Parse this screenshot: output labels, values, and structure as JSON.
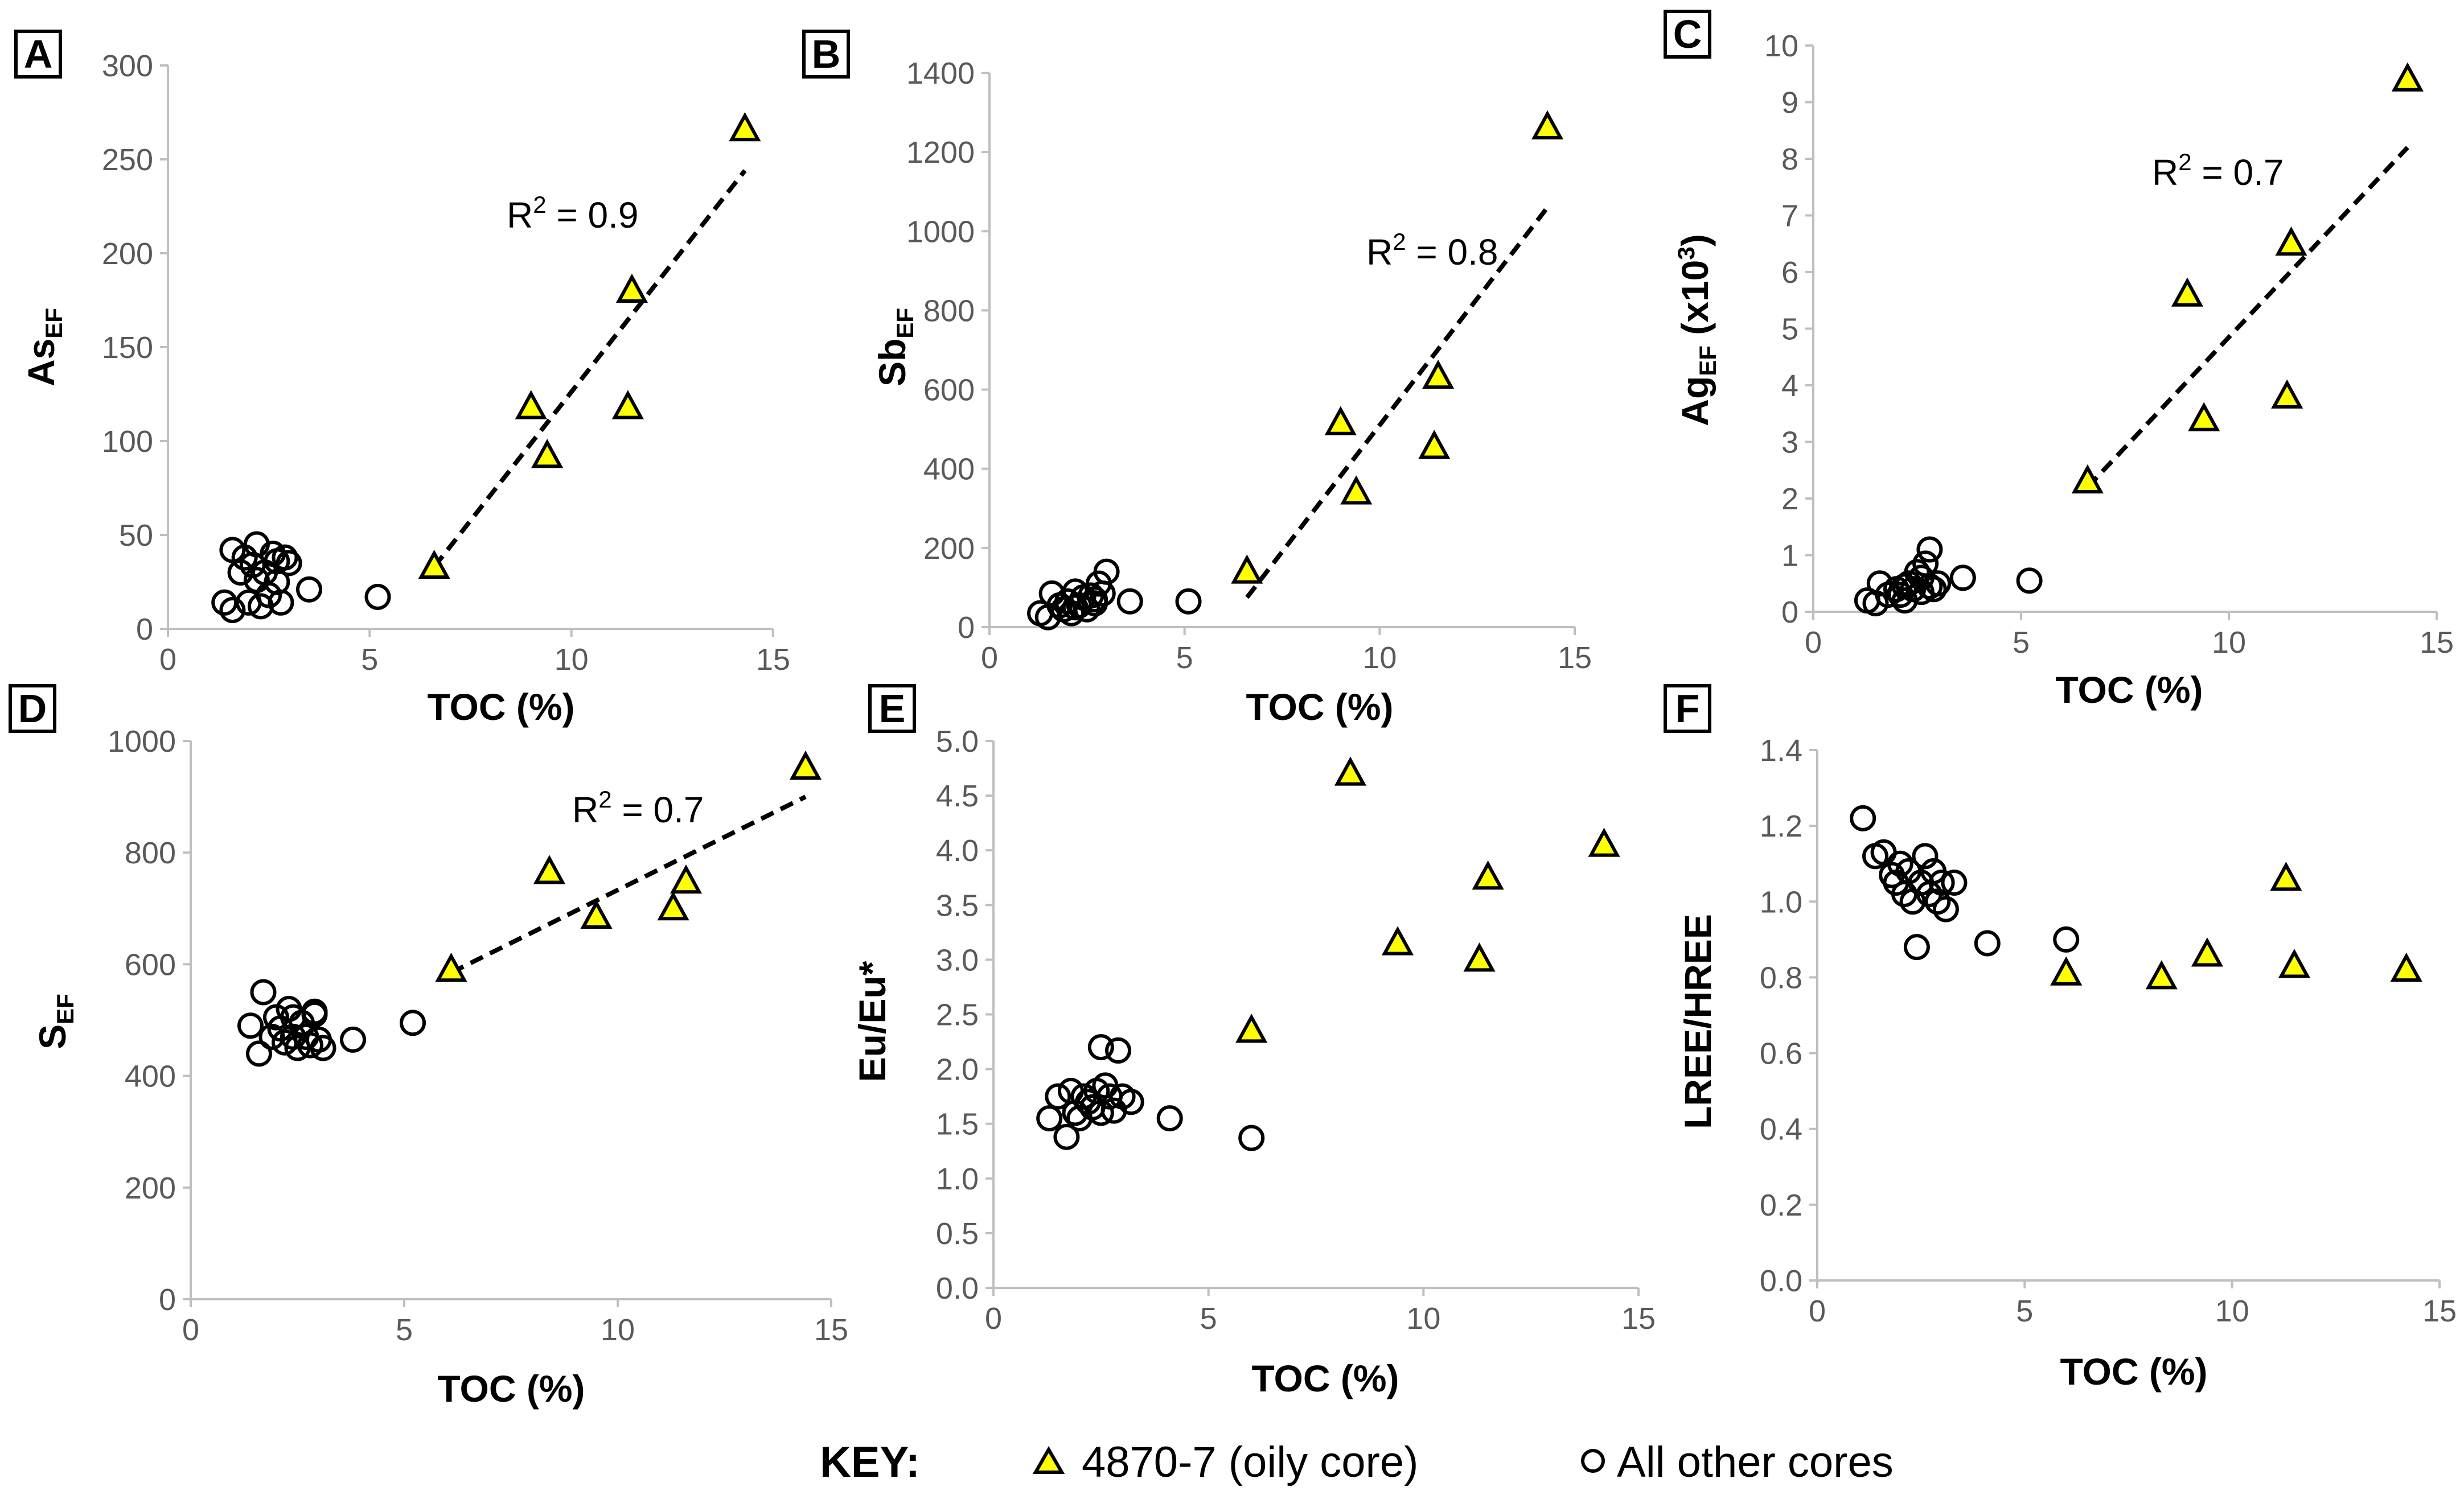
{
  "colors": {
    "triangle_fill": "#ffff00",
    "stroke": "#000000",
    "axis": "#bfbfbf",
    "tick_text": "#595959"
  },
  "chart_data": [
    {
      "type": "scatter",
      "panel": "A",
      "xlabel": "TOC (%)",
      "ylabel": {
        "main": "As",
        "sub": "EF",
        "suffix": ""
      },
      "xlim": [
        0,
        15
      ],
      "ylim": [
        0,
        300
      ],
      "xticks": [
        0,
        5,
        10,
        15
      ],
      "yticks": [
        0,
        50,
        100,
        150,
        200,
        250,
        300
      ],
      "annotation": {
        "text": "R",
        "sup": "2",
        "rest": " = 0.9"
      },
      "series": [
        {
          "name": "4870-7 (oily core)",
          "marker": "triangle",
          "points": [
            [
              6.6,
              33
            ],
            [
              9.0,
              118
            ],
            [
              9.4,
              92
            ],
            [
              11.4,
              118
            ],
            [
              11.5,
              180
            ],
            [
              14.3,
              266
            ]
          ]
        },
        {
          "name": "All other cores",
          "marker": "circle",
          "points": [
            [
              1.4,
              14
            ],
            [
              1.6,
              10
            ],
            [
              1.6,
              42
            ],
            [
              1.8,
              30
            ],
            [
              1.9,
              38
            ],
            [
              2.0,
              14
            ],
            [
              2.1,
              34
            ],
            [
              2.2,
              45
            ],
            [
              2.3,
              12
            ],
            [
              2.4,
              30
            ],
            [
              2.5,
              18
            ],
            [
              2.6,
              40
            ],
            [
              2.7,
              25
            ],
            [
              2.8,
              14
            ],
            [
              2.9,
              38
            ],
            [
              3.0,
              35
            ],
            [
              3.5,
              21
            ],
            [
              5.2,
              17
            ],
            [
              2.2,
              26
            ],
            [
              2.7,
              36
            ]
          ]
        }
      ],
      "trendline": [
        [
          6.6,
          33
        ],
        [
          14.3,
          244
        ]
      ]
    },
    {
      "type": "scatter",
      "panel": "B",
      "xlabel": "TOC (%)",
      "ylabel": {
        "main": "Sb",
        "sub": "EF",
        "suffix": ""
      },
      "xlim": [
        0,
        15
      ],
      "ylim": [
        0,
        1400
      ],
      "xticks": [
        0,
        5,
        10,
        15
      ],
      "yticks": [
        0,
        200,
        400,
        600,
        800,
        1000,
        1200,
        1400
      ],
      "annotation": {
        "text": "R",
        "sup": "2",
        "rest": " = 0.8"
      },
      "series": [
        {
          "name": "4870-7 (oily core)",
          "marker": "triangle",
          "points": [
            [
              6.6,
              140
            ],
            [
              9.0,
              515
            ],
            [
              9.4,
              340
            ],
            [
              11.4,
              455
            ],
            [
              11.5,
              632
            ],
            [
              14.3,
              1262
            ]
          ]
        },
        {
          "name": "All other cores",
          "marker": "circle",
          "points": [
            [
              1.3,
              35
            ],
            [
              1.5,
              25
            ],
            [
              1.6,
              85
            ],
            [
              1.8,
              55
            ],
            [
              1.9,
              45
            ],
            [
              2.0,
              65
            ],
            [
              2.1,
              35
            ],
            [
              2.2,
              90
            ],
            [
              2.3,
              55
            ],
            [
              2.4,
              75
            ],
            [
              2.5,
              45
            ],
            [
              2.6,
              80
            ],
            [
              2.7,
              60
            ],
            [
              2.8,
              110
            ],
            [
              2.9,
              85
            ],
            [
              3.0,
              140
            ],
            [
              3.6,
              65
            ],
            [
              5.1,
              65
            ],
            [
              2.2,
              50
            ],
            [
              2.7,
              70
            ]
          ]
        }
      ],
      "trendline": [
        [
          6.6,
          75
        ],
        [
          14.3,
          1060
        ]
      ]
    },
    {
      "type": "scatter",
      "panel": "C",
      "xlabel": "TOC (%)",
      "ylabel": {
        "main": "Ag",
        "sub": "EF",
        "suffix": " (x10",
        "suffix_sup": "3",
        "suffix_end": ")"
      },
      "xlim": [
        0,
        15
      ],
      "ylim": [
        0,
        10
      ],
      "xticks": [
        0,
        5,
        10,
        15
      ],
      "yticks": [
        0,
        1,
        2,
        3,
        4,
        5,
        6,
        7,
        8,
        9,
        10
      ],
      "annotation": {
        "text": "R",
        "sup": "2",
        "rest": " = 0.7"
      },
      "series": [
        {
          "name": "4870-7 (oily core)",
          "marker": "triangle",
          "points": [
            [
              6.6,
              2.3
            ],
            [
              9.0,
              5.6
            ],
            [
              9.4,
              3.4
            ],
            [
              11.4,
              3.8
            ],
            [
              11.5,
              6.5
            ],
            [
              14.3,
              9.4
            ]
          ]
        },
        {
          "name": "All other cores",
          "marker": "circle",
          "points": [
            [
              1.3,
              0.2
            ],
            [
              1.5,
              0.15
            ],
            [
              1.6,
              0.5
            ],
            [
              1.8,
              0.3
            ],
            [
              2.0,
              0.4
            ],
            [
              2.1,
              0.3
            ],
            [
              2.2,
              0.2
            ],
            [
              2.3,
              0.5
            ],
            [
              2.4,
              0.4
            ],
            [
              2.5,
              0.7
            ],
            [
              2.6,
              0.35
            ],
            [
              2.7,
              0.85
            ],
            [
              2.8,
              1.1
            ],
            [
              2.9,
              0.4
            ],
            [
              3.0,
              0.5
            ],
            [
              3.6,
              0.6
            ],
            [
              5.2,
              0.55
            ],
            [
              2.2,
              0.45
            ],
            [
              2.6,
              0.6
            ],
            [
              2.8,
              0.45
            ]
          ]
        }
      ],
      "trendline": [
        [
          6.6,
          2.2
        ],
        [
          14.3,
          8.2
        ]
      ]
    },
    {
      "type": "scatter",
      "panel": "D",
      "xlabel": "TOC (%)",
      "ylabel": {
        "main": "S",
        "sub": "EF",
        "suffix": ""
      },
      "xlim": [
        0,
        15
      ],
      "ylim": [
        0,
        1000
      ],
      "xticks": [
        0,
        5,
        10,
        15
      ],
      "yticks": [
        0,
        200,
        400,
        600,
        800,
        1000
      ],
      "annotation": {
        "text": "R",
        "sup": "2",
        "rest": " = 0.7"
      },
      "series": [
        {
          "name": "4870-7 (oily core)",
          "marker": "triangle",
          "points": [
            [
              6.1,
              590
            ],
            [
              8.4,
              765
            ],
            [
              9.5,
              685
            ],
            [
              11.3,
              700
            ],
            [
              11.6,
              748
            ],
            [
              14.4,
              952
            ]
          ]
        },
        {
          "name": "All other cores",
          "marker": "circle",
          "points": [
            [
              1.4,
              490
            ],
            [
              1.6,
              440
            ],
            [
              1.7,
              550
            ],
            [
              1.9,
              470
            ],
            [
              2.0,
              505
            ],
            [
              2.1,
              485
            ],
            [
              2.2,
              460
            ],
            [
              2.3,
              520
            ],
            [
              2.4,
              470
            ],
            [
              2.5,
              450
            ],
            [
              2.6,
              495
            ],
            [
              2.7,
              470
            ],
            [
              2.8,
              455
            ],
            [
              2.9,
              510
            ],
            [
              3.0,
              465
            ],
            [
              3.1,
              450
            ],
            [
              3.8,
              465
            ],
            [
              5.2,
              495
            ],
            [
              2.4,
              505
            ],
            [
              2.9,
              515
            ]
          ]
        }
      ],
      "trendline": [
        [
          6.1,
          585
        ],
        [
          14.4,
          900
        ]
      ]
    },
    {
      "type": "scatter",
      "panel": "E",
      "xlabel": "TOC (%)",
      "ylabel": {
        "main": "Eu/Eu*",
        "sub": "",
        "suffix": ""
      },
      "xlim": [
        0,
        15
      ],
      "ylim": [
        0,
        5
      ],
      "xticks": [
        0,
        5,
        10,
        15
      ],
      "yticks": [
        0,
        0.5,
        1,
        1.5,
        2,
        2.5,
        3,
        3.5,
        4,
        4.5,
        5
      ],
      "ytick_labels": [
        "0.0",
        "0.5",
        "1.0",
        "1.5",
        "2.0",
        "2.5",
        "3.0",
        "3.5",
        "4.0",
        "4.5",
        "5.0"
      ],
      "annotation": null,
      "series": [
        {
          "name": "4870-7 (oily core)",
          "marker": "triangle",
          "points": [
            [
              6.0,
              2.35
            ],
            [
              8.3,
              4.7
            ],
            [
              9.4,
              3.15
            ],
            [
              11.3,
              3.0
            ],
            [
              11.5,
              3.75
            ],
            [
              14.2,
              4.05
            ]
          ]
        },
        {
          "name": "All other cores",
          "marker": "circle",
          "points": [
            [
              1.3,
              1.55
            ],
            [
              1.5,
              1.75
            ],
            [
              1.7,
              1.38
            ],
            [
              1.8,
              1.8
            ],
            [
              1.9,
              1.6
            ],
            [
              2.0,
              1.55
            ],
            [
              2.1,
              1.75
            ],
            [
              2.2,
              1.7
            ],
            [
              2.3,
              1.65
            ],
            [
              2.4,
              1.8
            ],
            [
              2.5,
              2.2
            ],
            [
              2.6,
              1.85
            ],
            [
              2.7,
              1.75
            ],
            [
              2.8,
              1.62
            ],
            [
              2.9,
              2.17
            ],
            [
              3.0,
              1.75
            ],
            [
              3.2,
              1.7
            ],
            [
              4.1,
              1.55
            ],
            [
              6.0,
              1.37
            ],
            [
              2.5,
              1.6
            ]
          ]
        }
      ],
      "trendline": null
    },
    {
      "type": "scatter",
      "panel": "F",
      "xlabel": "TOC (%)",
      "ylabel": {
        "main": "LREE/HREE",
        "sub": "",
        "suffix": ""
      },
      "xlim": [
        0,
        15
      ],
      "ylim": [
        0,
        1.4
      ],
      "xticks": [
        0,
        5,
        10,
        15
      ],
      "yticks": [
        0,
        0.2,
        0.4,
        0.6,
        0.8,
        1.0,
        1.2,
        1.4
      ],
      "ytick_labels": [
        "0.0",
        "0.2",
        "0.4",
        "0.6",
        "0.8",
        "1.0",
        "1.2",
        "1.4"
      ],
      "annotation": null,
      "series": [
        {
          "name": "4870-7 (oily core)",
          "marker": "triangle",
          "points": [
            [
              6.0,
              0.81
            ],
            [
              8.3,
              0.8
            ],
            [
              9.4,
              0.86
            ],
            [
              11.3,
              1.06
            ],
            [
              11.5,
              0.83
            ],
            [
              14.2,
              0.82
            ]
          ]
        },
        {
          "name": "All other cores",
          "marker": "circle",
          "points": [
            [
              1.1,
              1.22
            ],
            [
              1.4,
              1.12
            ],
            [
              1.6,
              1.13
            ],
            [
              1.8,
              1.07
            ],
            [
              1.9,
              1.05
            ],
            [
              2.0,
              1.1
            ],
            [
              2.1,
              1.02
            ],
            [
              2.2,
              1.08
            ],
            [
              2.3,
              1.0
            ],
            [
              2.4,
              0.88
            ],
            [
              2.5,
              1.05
            ],
            [
              2.6,
              1.12
            ],
            [
              2.7,
              1.02
            ],
            [
              2.8,
              1.08
            ],
            [
              2.9,
              1.0
            ],
            [
              3.0,
              1.05
            ],
            [
              3.1,
              0.98
            ],
            [
              3.3,
              1.05
            ],
            [
              4.1,
              0.89
            ],
            [
              6.0,
              0.9
            ]
          ]
        }
      ],
      "trendline": null
    }
  ],
  "key": {
    "title": "KEY:",
    "items": [
      {
        "marker": "triangle",
        "label": "4870-7 (oily core)"
      },
      {
        "marker": "circle",
        "label": "All other cores"
      }
    ]
  }
}
